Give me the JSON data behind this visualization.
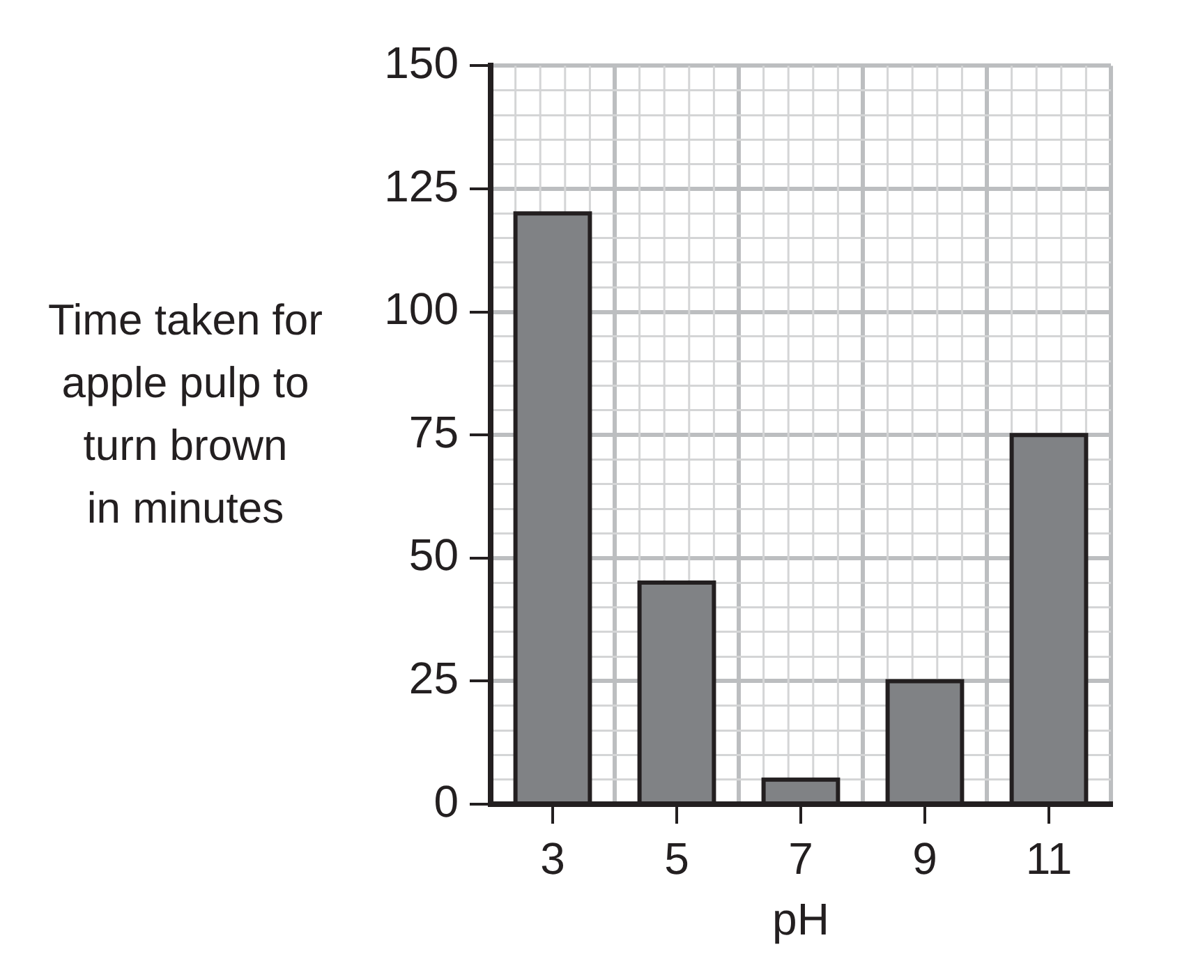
{
  "chart_data": {
    "type": "bar",
    "xlabel": "pH",
    "ylabel": "Time taken for\napple pulp to\nturn brown\nin minutes",
    "categories": [
      "3",
      "5",
      "7",
      "9",
      "11"
    ],
    "values": [
      120,
      45,
      5,
      25,
      75
    ],
    "color": "#808285",
    "ylim": [
      0,
      150
    ],
    "yticks": [
      0,
      {
        "value": 5,
        "label": null
      },
      {
        "value": 10,
        "label": null
      },
      {
        "value": 15,
        "label": null
      },
      {
        "value": 20,
        "label": null
      },
      25,
      {
        "value": 30,
        "label": null
      },
      {
        "value": 35,
        "label": null
      },
      {
        "value": 40,
        "label": null
      },
      {
        "value": 45,
        "label": null
      },
      50,
      {
        "value": 55,
        "label": null
      },
      {
        "value": 60,
        "label": null
      },
      {
        "value": 65,
        "label": null
      },
      {
        "value": 70,
        "label": null
      },
      75,
      {
        "value": 80,
        "label": null
      },
      {
        "value": 85,
        "label": null
      },
      {
        "value": 90,
        "label": null
      },
      {
        "value": 95,
        "label": null
      },
      100,
      {
        "value": 105,
        "label": null
      },
      {
        "value": 110,
        "label": null
      },
      {
        "value": 115,
        "label": null
      },
      {
        "value": 120,
        "label": null
      },
      125,
      {
        "value": 130,
        "label": null
      },
      {
        "value": 135,
        "label": null
      },
      {
        "value": 140,
        "label": null
      },
      {
        "value": 145,
        "label": null
      },
      150
    ],
    "grid": true
  }
}
